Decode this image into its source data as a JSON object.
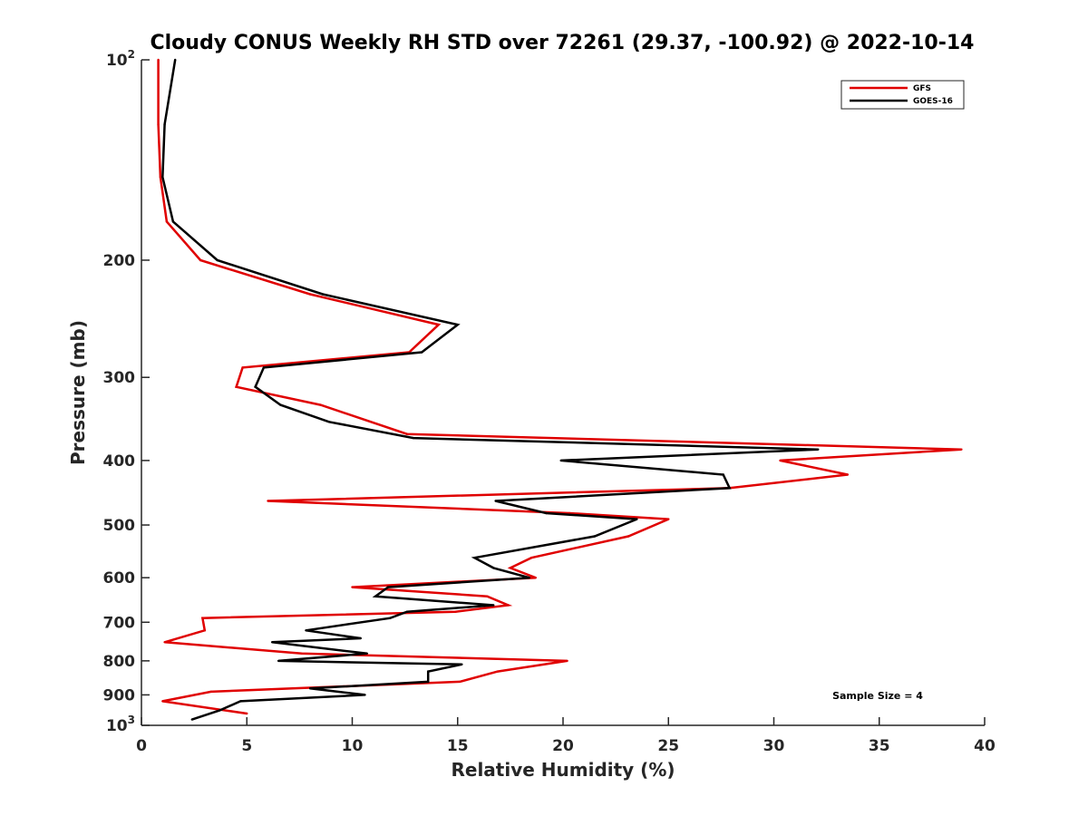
{
  "chart_data": {
    "type": "line",
    "title": "Cloudy CONUS Weekly RH STD over 72261 (29.37, -100.92) @ 2022-10-14",
    "xlabel": "Relative Humidity (%)",
    "ylabel": "Pressure (mb)",
    "xlim": [
      0,
      40
    ],
    "ylim": [
      100,
      1000
    ],
    "y_scale": "log",
    "y_reversed": true,
    "grid": false,
    "legend_position": "top-right",
    "annotation": "Sample Size = 4",
    "x_ticks": [
      "0",
      "5",
      "10",
      "15",
      "20",
      "25",
      "30",
      "35",
      "40"
    ],
    "y_ticks": [
      {
        "value": 100,
        "base": "10",
        "exp": "2"
      },
      {
        "value": 200,
        "label": "200"
      },
      {
        "value": 300,
        "label": "300"
      },
      {
        "value": 400,
        "label": "400"
      },
      {
        "value": 500,
        "label": "500"
      },
      {
        "value": 600,
        "label": "600"
      },
      {
        "value": 700,
        "label": "700"
      },
      {
        "value": 800,
        "label": "800"
      },
      {
        "value": 900,
        "label": "900"
      },
      {
        "value": 1000,
        "base": "10",
        "exp": "3"
      }
    ],
    "series": [
      {
        "name": "GFS",
        "color": "#e00000",
        "points": [
          [
            0.8,
            100
          ],
          [
            0.8,
            125
          ],
          [
            0.9,
            150
          ],
          [
            1.2,
            175
          ],
          [
            2.8,
            200
          ],
          [
            8.0,
            225
          ],
          [
            14.1,
            250
          ],
          [
            12.7,
            275
          ],
          [
            4.8,
            290
          ],
          [
            4.5,
            310
          ],
          [
            8.5,
            330
          ],
          [
            12.6,
            365
          ],
          [
            38.9,
            385
          ],
          [
            30.3,
            400
          ],
          [
            33.5,
            420
          ],
          [
            27.9,
            440
          ],
          [
            6.0,
            460
          ],
          [
            20.3,
            480
          ],
          [
            25.0,
            490
          ],
          [
            23.1,
            520
          ],
          [
            18.5,
            560
          ],
          [
            17.5,
            580
          ],
          [
            18.7,
            600
          ],
          [
            10.0,
            620
          ],
          [
            16.4,
            640
          ],
          [
            17.4,
            660
          ],
          [
            14.9,
            675
          ],
          [
            2.9,
            690
          ],
          [
            3.0,
            720
          ],
          [
            1.1,
            750
          ],
          [
            7.6,
            780
          ],
          [
            20.2,
            800
          ],
          [
            16.9,
            830
          ],
          [
            15.1,
            860
          ],
          [
            3.3,
            890
          ],
          [
            1.0,
            920
          ],
          [
            5.0,
            960
          ]
        ]
      },
      {
        "name": "GOES-16",
        "color": "#000000",
        "points": [
          [
            1.6,
            100
          ],
          [
            1.1,
            125
          ],
          [
            1.0,
            150
          ],
          [
            1.5,
            175
          ],
          [
            3.6,
            200
          ],
          [
            8.6,
            225
          ],
          [
            15.0,
            250
          ],
          [
            13.3,
            275
          ],
          [
            5.8,
            290
          ],
          [
            5.4,
            310
          ],
          [
            6.6,
            330
          ],
          [
            8.9,
            350
          ],
          [
            12.9,
            370
          ],
          [
            32.1,
            385
          ],
          [
            19.9,
            400
          ],
          [
            27.6,
            420
          ],
          [
            27.9,
            440
          ],
          [
            16.8,
            460
          ],
          [
            19.2,
            480
          ],
          [
            23.5,
            490
          ],
          [
            21.5,
            520
          ],
          [
            15.8,
            560
          ],
          [
            16.7,
            580
          ],
          [
            18.4,
            600
          ],
          [
            11.7,
            620
          ],
          [
            11.1,
            640
          ],
          [
            16.7,
            660
          ],
          [
            12.6,
            675
          ],
          [
            11.8,
            690
          ],
          [
            7.8,
            720
          ],
          [
            10.4,
            740
          ],
          [
            6.2,
            750
          ],
          [
            10.7,
            780
          ],
          [
            6.5,
            800
          ],
          [
            15.2,
            810
          ],
          [
            13.6,
            830
          ],
          [
            13.6,
            860
          ],
          [
            8.0,
            880
          ],
          [
            10.6,
            900
          ],
          [
            4.7,
            920
          ],
          [
            3.7,
            950
          ],
          [
            2.4,
            980
          ]
        ]
      }
    ]
  }
}
